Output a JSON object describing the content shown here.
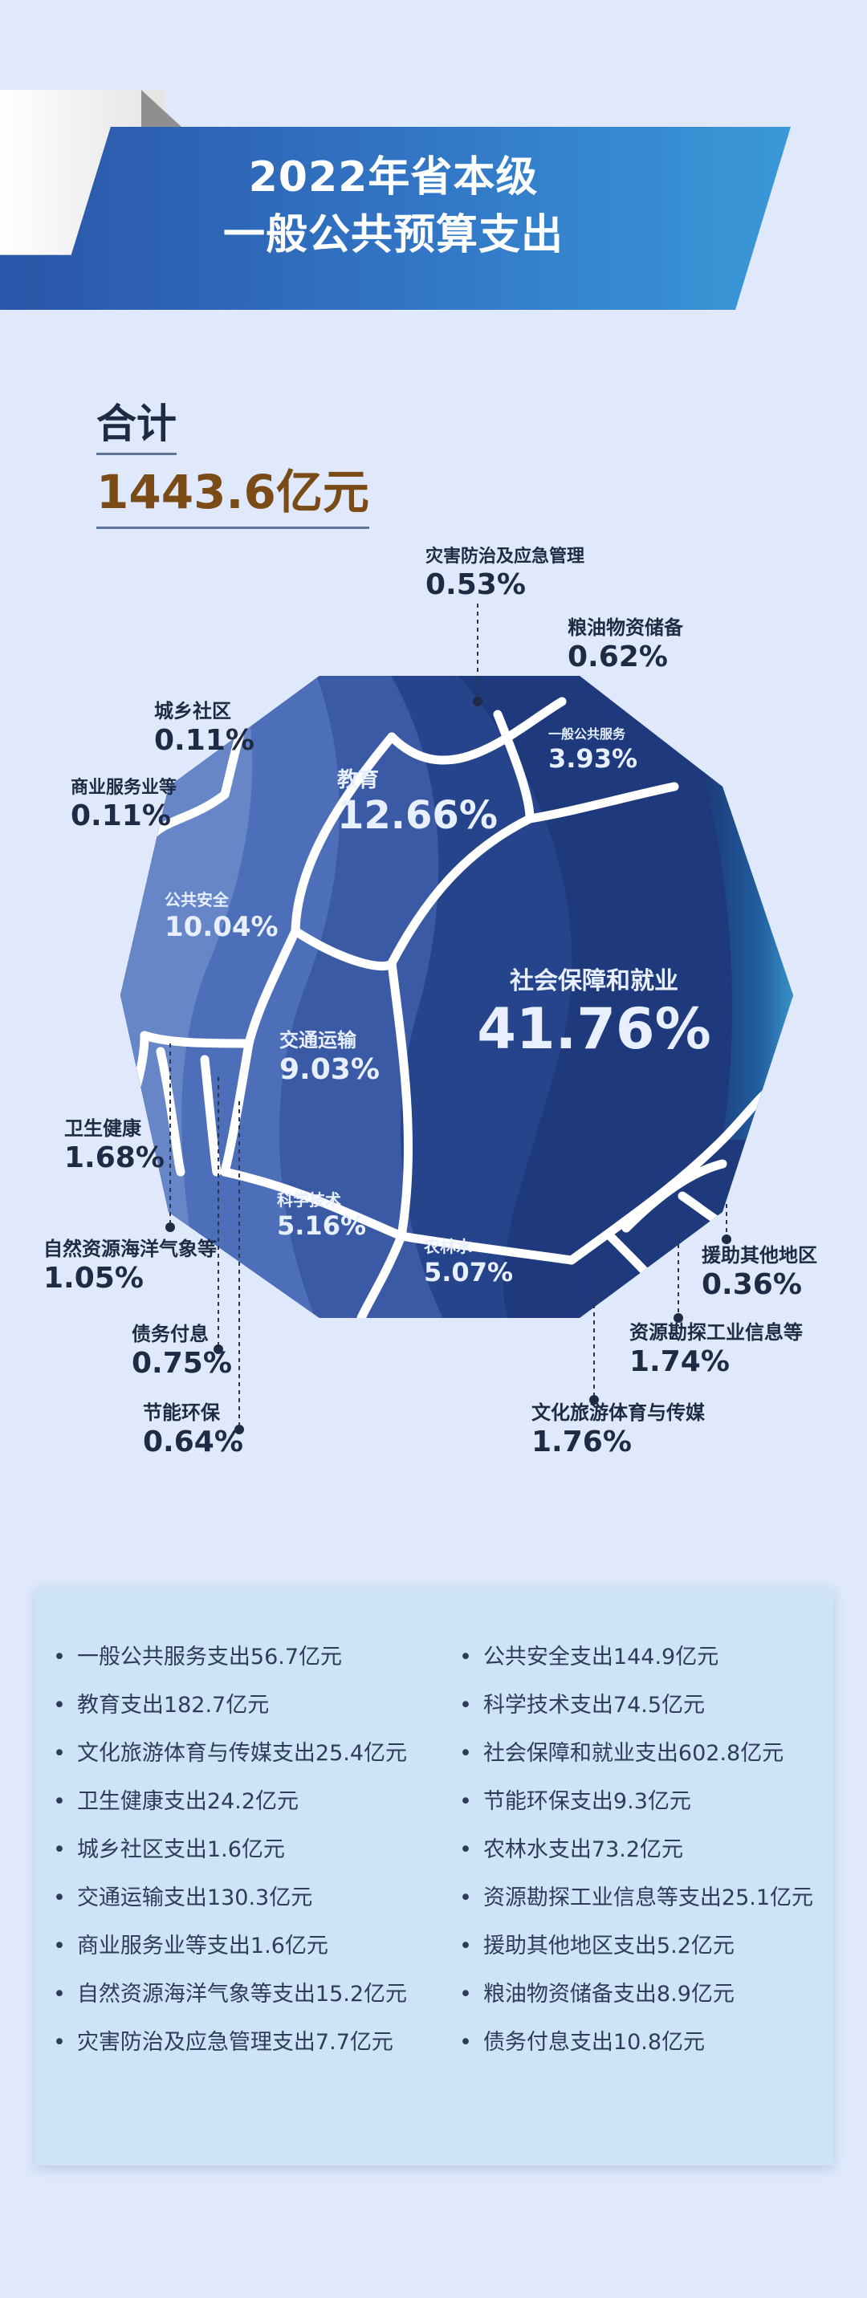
{
  "header": {
    "title_line1": "2022年省本级",
    "title_line2": "一般公共预算支出"
  },
  "total": {
    "label": "合计",
    "value": "1443.6亿元"
  },
  "chart_data": {
    "type": "pie",
    "title": "2022年省本级一般公共预算支出",
    "unit": "%",
    "slices": [
      {
        "label": "社会保障和就业",
        "display": "41.76%",
        "value": 41.76
      },
      {
        "label": "教育",
        "display": "12.66%",
        "value": 12.66
      },
      {
        "label": "公共安全",
        "display": "10.04%",
        "value": 10.04
      },
      {
        "label": "交通运输",
        "display": "9.03%",
        "value": 9.03
      },
      {
        "label": "科学技术",
        "display": "5.16%",
        "value": 5.16
      },
      {
        "label": "农林水",
        "display": "5.07%",
        "value": 5.07
      },
      {
        "label": "一般公共服务",
        "display": "3.93%",
        "value": 3.93
      },
      {
        "label": "文化旅游体育与传媒",
        "display": "1.76%",
        "value": 1.76
      },
      {
        "label": "资源勘探工业信息等",
        "display": "1.74%",
        "value": 1.74
      },
      {
        "label": "卫生健康",
        "display": "1.68%",
        "value": 1.68
      },
      {
        "label": "自然资源海洋气象等",
        "display": "1.05%",
        "value": 1.05
      },
      {
        "label": "债务付息",
        "display": "0.75%",
        "value": 0.75
      },
      {
        "label": "节能环保",
        "display": "0.64%",
        "value": 0.64
      },
      {
        "label": "粮油物资储备",
        "display": "0.62%",
        "value": 0.62
      },
      {
        "label": "灾害防治及应急管理",
        "display": "0.53%",
        "value": 0.53
      },
      {
        "label": "援助其他地区",
        "display": "0.36%",
        "value": 0.36
      },
      {
        "label": "城乡社区",
        "display": "0.11%",
        "value": 0.11
      },
      {
        "label": "商业服务业等",
        "display": "0.11%",
        "value": 0.11
      }
    ]
  },
  "list": {
    "left": [
      "一般公共服务支出56.7亿元",
      "教育支出182.7亿元",
      "文化旅游体育与传媒支出25.4亿元",
      "卫生健康支出24.2亿元",
      "城乡社区支出1.6亿元",
      "交通运输支出130.3亿元",
      "商业服务业等支出1.6亿元",
      "自然资源海洋气象等支出15.2亿元",
      "灾害防治及应急管理支出7.7亿元"
    ],
    "right": [
      "公共安全支出144.9亿元",
      "科学技术支出74.5亿元",
      "社会保障和就业支出602.8亿元",
      "节能环保支出9.3亿元",
      "农林水支出73.2亿元",
      "资源勘探工业信息等支出25.1亿元",
      "援助其他地区支出5.2亿元",
      "粮油物资储备支出8.9亿元",
      "债务付息支出10.8亿元"
    ],
    "bullet": "•"
  },
  "colors": {
    "background": "#dfe9fb",
    "dark_navy": "#1d3a7c",
    "mid_blue": "#3b5ca8",
    "light_blue": "#6183c6",
    "label_dark": "#1f2b44",
    "label_light": "#e8f0ff",
    "total_value": "#7a4a17"
  }
}
